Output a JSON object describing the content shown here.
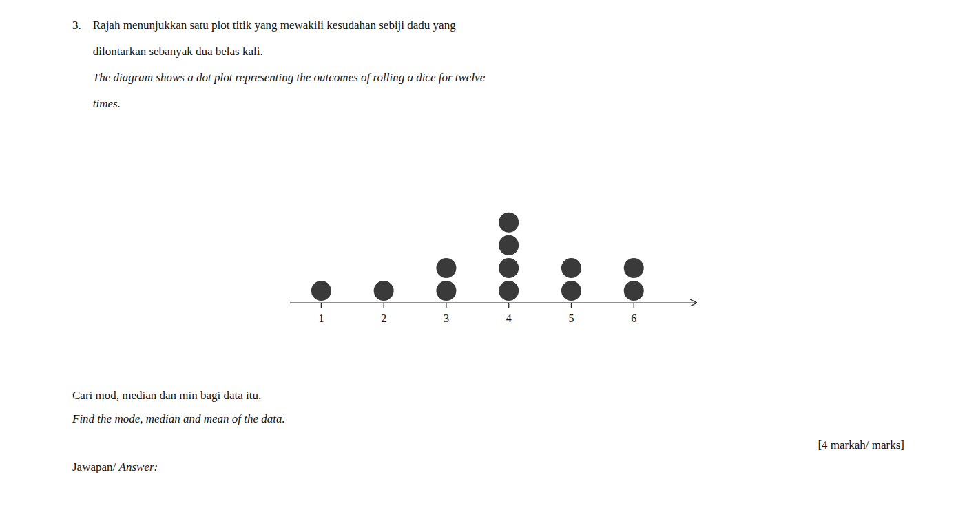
{
  "chart_data": {
    "type": "dot",
    "title": [
      "3.    Rajah menunjukkan satu plot titik yang mewakili kesudahan sebiji dadu yang",
      "       dilontarkan sebanyak dua belas kali."
    ],
    "subtitle": [
      "       The diagram shows a dot plot representing the outcomes of rolling a dice for twelve",
      "       times."
    ],
    "annotations": [
      "Cari mod, median dan min bagi data itu.",
      "Find the mode, median and mean of the data.",
      "[4 markah/ marks]",
      "Jawapan/ ",
      "Answer:"
    ],
    "x": [
      1,
      2,
      3,
      4,
      5,
      6
    ],
    "values": [
      1,
      1,
      2,
      4,
      2,
      2
    ],
    "color": "#3a3a3a",
    "xlim": [
      0.5,
      7.0
    ],
    "xticks": [
      1,
      2,
      3,
      4,
      5,
      6
    ],
    "tick_labels": "x",
    "grid": false
  }
}
